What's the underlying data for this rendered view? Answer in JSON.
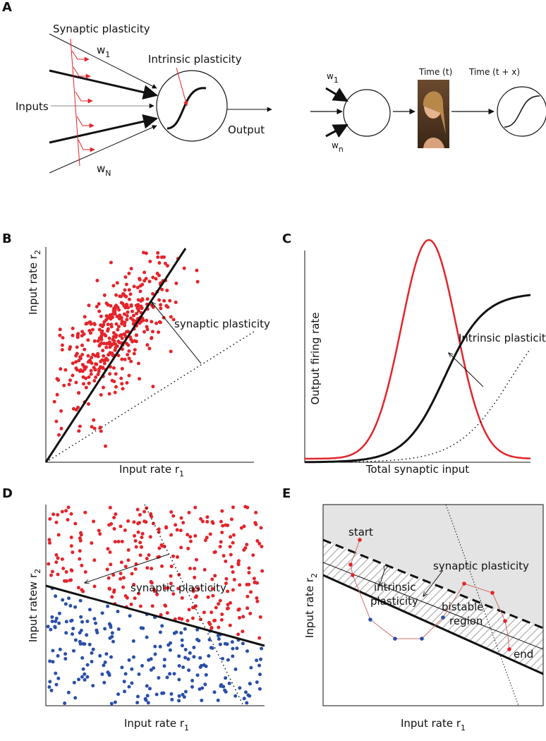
{
  "panels": {
    "A": {
      "label": "A",
      "synaptic": "Synaptic plasticity",
      "w1": {
        "text": "w",
        "sub": "1"
      },
      "intrinsic": "Intrinsic plasticity",
      "inputs": "Inputs",
      "output": "Output",
      "wN": {
        "text": "w",
        "sub": "N"
      },
      "w1_right": {
        "text": "w",
        "sub": "1"
      },
      "wn_right": {
        "text": "w",
        "sub": "n"
      },
      "time_t": "Time (t)",
      "time_tx": "Time (t + x)"
    },
    "B": {
      "label": "B",
      "xlabel": {
        "text": "Input rate r",
        "sub": "1"
      },
      "ylabel": {
        "text": "Input rate r",
        "sub": "2"
      },
      "annotation": "synaptic plasticity"
    },
    "C": {
      "label": "C",
      "xlabel": "Total synaptic input",
      "ylabel": "Output firing rate",
      "annotation": "Intrinsic plasticity"
    },
    "D": {
      "label": "D",
      "xlabel": {
        "text": "Input rate r",
        "sub": "1"
      },
      "ylabel": {
        "text": "Input ratew r",
        "sub": "2"
      },
      "annotation": "synaptic plasticity"
    },
    "E": {
      "label": "E",
      "xlabel": {
        "text": "Input rate r",
        "sub": "1"
      },
      "ylabel": {
        "text": "Input rate r",
        "sub": "2"
      },
      "start": "start",
      "end": "end",
      "intrinsic_1": "intrinsic",
      "intrinsic_2": "plasticity",
      "synaptic": "synaptic plasticity",
      "bistable_1": "bistable",
      "bistable_2": "region"
    }
  }
}
